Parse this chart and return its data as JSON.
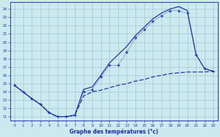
{
  "xlabel": "Graphe des températures (°c)",
  "hours": [
    0,
    1,
    2,
    3,
    4,
    5,
    6,
    7,
    8,
    9,
    10,
    11,
    12,
    13,
    14,
    15,
    16,
    17,
    18,
    19,
    20,
    21,
    22,
    23
  ],
  "temp_solid": [
    14.8,
    14.0,
    13.2,
    12.5,
    11.5,
    11.0,
    11.0,
    11.2,
    14.3,
    14.6,
    16.0,
    17.5,
    18.5,
    19.5,
    20.8,
    21.8,
    22.8,
    23.5,
    24.0,
    24.3,
    23.8,
    18.5,
    16.8,
    16.5
  ],
  "temp_dotted": [
    14.8,
    14.0,
    13.2,
    12.5,
    11.5,
    11.0,
    11.0,
    11.2,
    14.0,
    14.3,
    15.8,
    17.2,
    17.2,
    18.8,
    20.5,
    21.5,
    22.5,
    23.2,
    23.8,
    23.8,
    23.5,
    18.5,
    16.8,
    16.5
  ],
  "temp_dashed": [
    14.8,
    14.0,
    13.2,
    12.5,
    11.5,
    11.0,
    11.0,
    11.2,
    13.5,
    14.0,
    14.2,
    14.5,
    14.8,
    15.0,
    15.3,
    15.5,
    15.8,
    16.0,
    16.2,
    16.3,
    16.4,
    16.4,
    16.4,
    16.5
  ],
  "y_min": 10.5,
  "y_max": 24.8,
  "y_ticks": [
    11,
    12,
    13,
    14,
    15,
    16,
    17,
    18,
    19,
    20,
    21,
    22,
    23,
    24
  ],
  "x_ticks": [
    0,
    1,
    2,
    3,
    4,
    5,
    6,
    7,
    8,
    9,
    10,
    11,
    12,
    13,
    14,
    15,
    16,
    17,
    18,
    19,
    20,
    21,
    22,
    23
  ],
  "bg_color": "#cce9f0",
  "line_color": "#1c2db5",
  "grid_color": "#9fc4cf"
}
